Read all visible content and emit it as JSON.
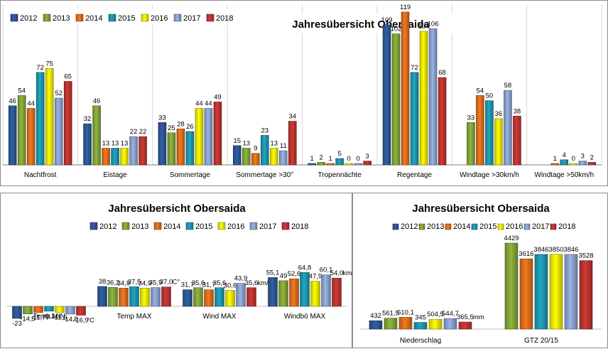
{
  "colors": {
    "2012": "#2e5a99",
    "2013": "#86a93a",
    "2014": "#e4711c",
    "2015": "#1f9bb5",
    "2016": "#f4f200",
    "2017": "#8ea7d6",
    "2018": "#c23632"
  },
  "chart_data": [
    {
      "type": "bar",
      "title": "Jahresübersicht Obersaida",
      "legend_position": "top-left",
      "grid": true,
      "categories": [
        "Nachtfrost",
        "Eistage",
        "Sommertage",
        "Sommertage >30°",
        "Tropennächte",
        "Regentage",
        "Windtage >30km/h",
        "Windtage >50km/h"
      ],
      "series": [
        {
          "name": "2012",
          "values": [
            46,
            32,
            33,
            15,
            1,
            109,
            null,
            null
          ],
          "labels": [
            "46",
            "32",
            "33",
            "15",
            "1",
            "109",
            "",
            ""
          ]
        },
        {
          "name": "2013",
          "values": [
            54,
            46,
            25,
            13,
            2,
            102,
            33,
            null
          ],
          "labels": [
            "54",
            "46",
            "25",
            "13",
            "2",
            "102",
            "33",
            ""
          ]
        },
        {
          "name": "2014",
          "values": [
            44,
            13,
            28,
            9,
            1,
            119,
            54,
            1
          ],
          "labels": [
            "44",
            "13",
            "28",
            "9",
            "1",
            "119",
            "54",
            "1"
          ]
        },
        {
          "name": "2015",
          "values": [
            72,
            13,
            26,
            23,
            5,
            72,
            50,
            4
          ],
          "labels": [
            "72",
            "13",
            "26",
            "23",
            "5",
            "72",
            "50",
            "4"
          ]
        },
        {
          "name": "2016",
          "values": [
            75,
            13,
            44,
            13,
            0,
            104,
            36,
            0
          ],
          "labels": [
            "75",
            "13",
            "44",
            "13",
            "0",
            "104",
            "36",
            "0"
          ]
        },
        {
          "name": "2017",
          "values": [
            52,
            22,
            44,
            11,
            0,
            106,
            58,
            3
          ],
          "labels": [
            "52",
            "22",
            "44",
            "11",
            "0",
            "106",
            "58",
            "3"
          ]
        },
        {
          "name": "2018",
          "values": [
            65,
            22,
            49,
            34,
            3,
            68,
            38,
            2
          ],
          "labels": [
            "65",
            "22",
            "49",
            "34",
            "3",
            "68",
            "38",
            "2"
          ]
        }
      ],
      "ylim": [
        0,
        125
      ]
    },
    {
      "type": "bar",
      "title": "Jahresübersicht Obersaida",
      "legend_position": "top",
      "grid": false,
      "categories": [
        "Temp MIN",
        "Temp MAX",
        "Wind MAX",
        "Windbö MAX"
      ],
      "series": [
        {
          "name": "2012",
          "values": [
            -23,
            38,
            31.7,
            55.1
          ],
          "labels": [
            "-23",
            "38",
            "31,7",
            "55,1"
          ]
        },
        {
          "name": "2013",
          "values": [
            -14.5,
            36.2,
            35.6,
            49
          ],
          "labels": [
            "-14,5",
            "36,2",
            "35,6",
            "49"
          ]
        },
        {
          "name": "2014",
          "values": [
            -11.7,
            34.8,
            31.7,
            52.6
          ],
          "labels": [
            "-11,7",
            "34,8",
            "31,7",
            "52,6"
          ]
        },
        {
          "name": "2015",
          "values": [
            -9.2,
            37.5,
            35.6,
            64.8
          ],
          "labels": [
            "-9,2",
            "37,5",
            "35,6",
            "64,8"
          ]
        },
        {
          "name": "2016",
          "values": [
            -11.5,
            34.9,
            30.6,
            47.9
          ],
          "labels": [
            "-11,5",
            "34,9",
            "30,6",
            "47,9"
          ]
        },
        {
          "name": "2017",
          "values": [
            -14.8,
            35.9,
            43.9,
            60.1
          ],
          "labels": [
            "-14,8",
            "35,9",
            "43,9",
            "60,1"
          ]
        },
        {
          "name": "2018",
          "values": [
            -16.9,
            37,
            35.6,
            54
          ],
          "labels": [
            "-16,9",
            "37,0",
            "35,6",
            "54,0"
          ]
        }
      ],
      "unit_labels": [
        "°C",
        "C°",
        "km/h",
        "km/h"
      ]
    },
    {
      "type": "bar",
      "title": "Jahresübersicht Obersaida",
      "legend_position": "top",
      "grid": false,
      "categories": [
        "Niederschlag",
        "GTZ 20/15"
      ],
      "series": [
        {
          "name": "2012",
          "values": [
            432,
            null
          ],
          "labels": [
            "432",
            ""
          ]
        },
        {
          "name": "2013",
          "values": [
            561.5,
            4429
          ],
          "labels": [
            "561,5",
            "4429"
          ]
        },
        {
          "name": "2014",
          "values": [
            610.1,
            3616
          ],
          "labels": [
            "610,1",
            "3616"
          ]
        },
        {
          "name": "2015",
          "values": [
            345,
            3846
          ],
          "labels": [
            "345",
            "3846"
          ]
        },
        {
          "name": "2016",
          "values": [
            504.5,
            3850
          ],
          "labels": [
            "504,5",
            "3850"
          ]
        },
        {
          "name": "2017",
          "values": [
            544.7,
            3846
          ],
          "labels": [
            "544,7",
            "3846"
          ]
        },
        {
          "name": "2018",
          "values": [
            365.5,
            3528
          ],
          "labels": [
            "365,5",
            "3528"
          ]
        }
      ],
      "unit_labels": [
        "mm",
        ""
      ]
    }
  ]
}
